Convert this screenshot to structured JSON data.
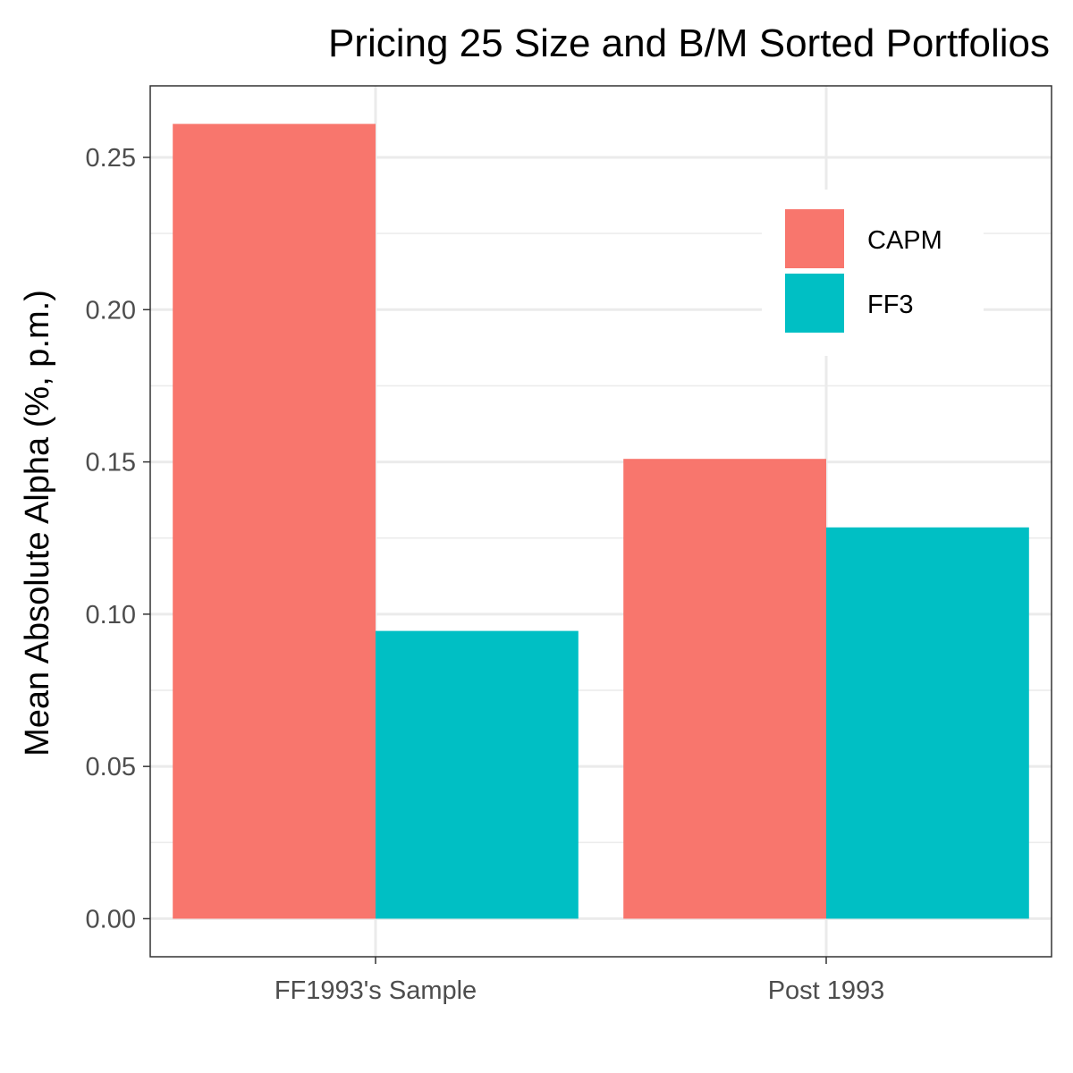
{
  "chart_data": {
    "type": "bar",
    "title": "Pricing 25 Size and B/M Sorted Portfolios",
    "xlabel": "",
    "ylabel": "Mean Absolute Alpha (%, p.m.)",
    "categories": [
      "FF1993's Sample",
      "Post 1993"
    ],
    "series": [
      {
        "name": "CAPM",
        "color": "#F8766D",
        "values": [
          0.261,
          0.151
        ]
      },
      {
        "name": "FF3",
        "color": "#00BFC4",
        "values": [
          0.0945,
          0.1285
        ]
      }
    ],
    "ylim": [
      -0.0125,
      0.2735
    ],
    "yticks": [
      0.0,
      0.05,
      0.1,
      0.15,
      0.2,
      0.25
    ],
    "ytick_labels": [
      "0.00",
      "0.05",
      "0.10",
      "0.15",
      "0.20",
      "0.25"
    ],
    "grid": true,
    "legend_position": "top-right"
  }
}
